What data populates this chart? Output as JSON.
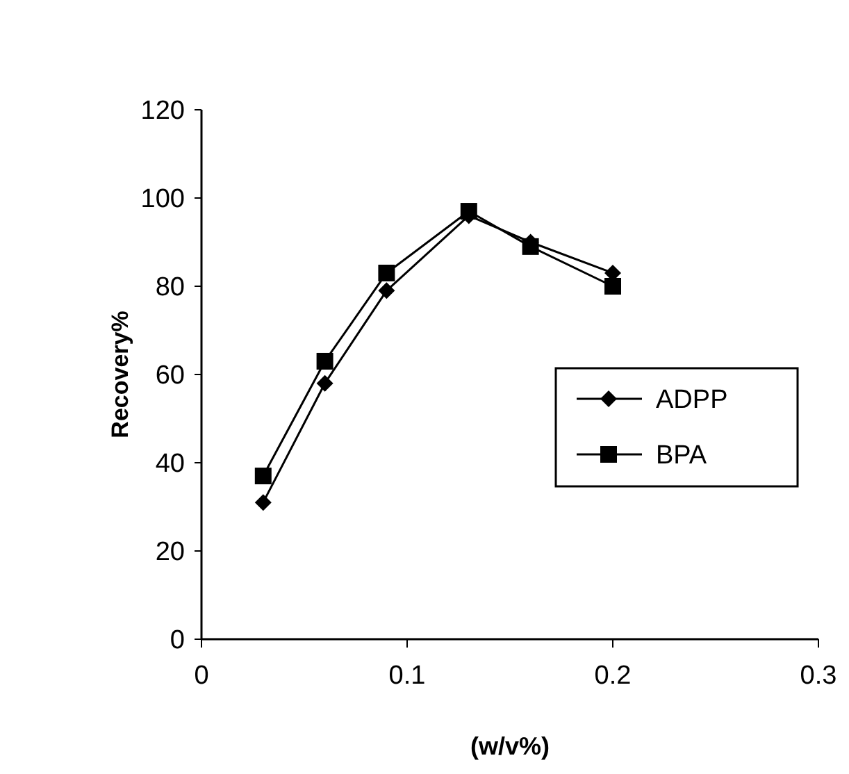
{
  "chart_data": {
    "type": "line",
    "xlabel": "(w/v%)",
    "ylabel": "Recovery%",
    "x": [
      0.03,
      0.06,
      0.09,
      0.13,
      0.16,
      0.2
    ],
    "series": [
      {
        "name": "ADPP",
        "color": "#000000",
        "marker": "diamond",
        "values": [
          31,
          58,
          79,
          96,
          90,
          83
        ]
      },
      {
        "name": "BPA",
        "color": "#000000",
        "marker": "square",
        "values": [
          37,
          63,
          83,
          97,
          89,
          80
        ]
      }
    ],
    "xlim": [
      0,
      0.3
    ],
    "xticks": [
      0,
      0.1,
      0.2,
      0.3
    ],
    "ylim": [
      0,
      120
    ],
    "yticks": [
      0,
      20,
      40,
      60,
      80,
      100,
      120
    ],
    "grid": false,
    "legend": "right",
    "line_style": "solid"
  }
}
